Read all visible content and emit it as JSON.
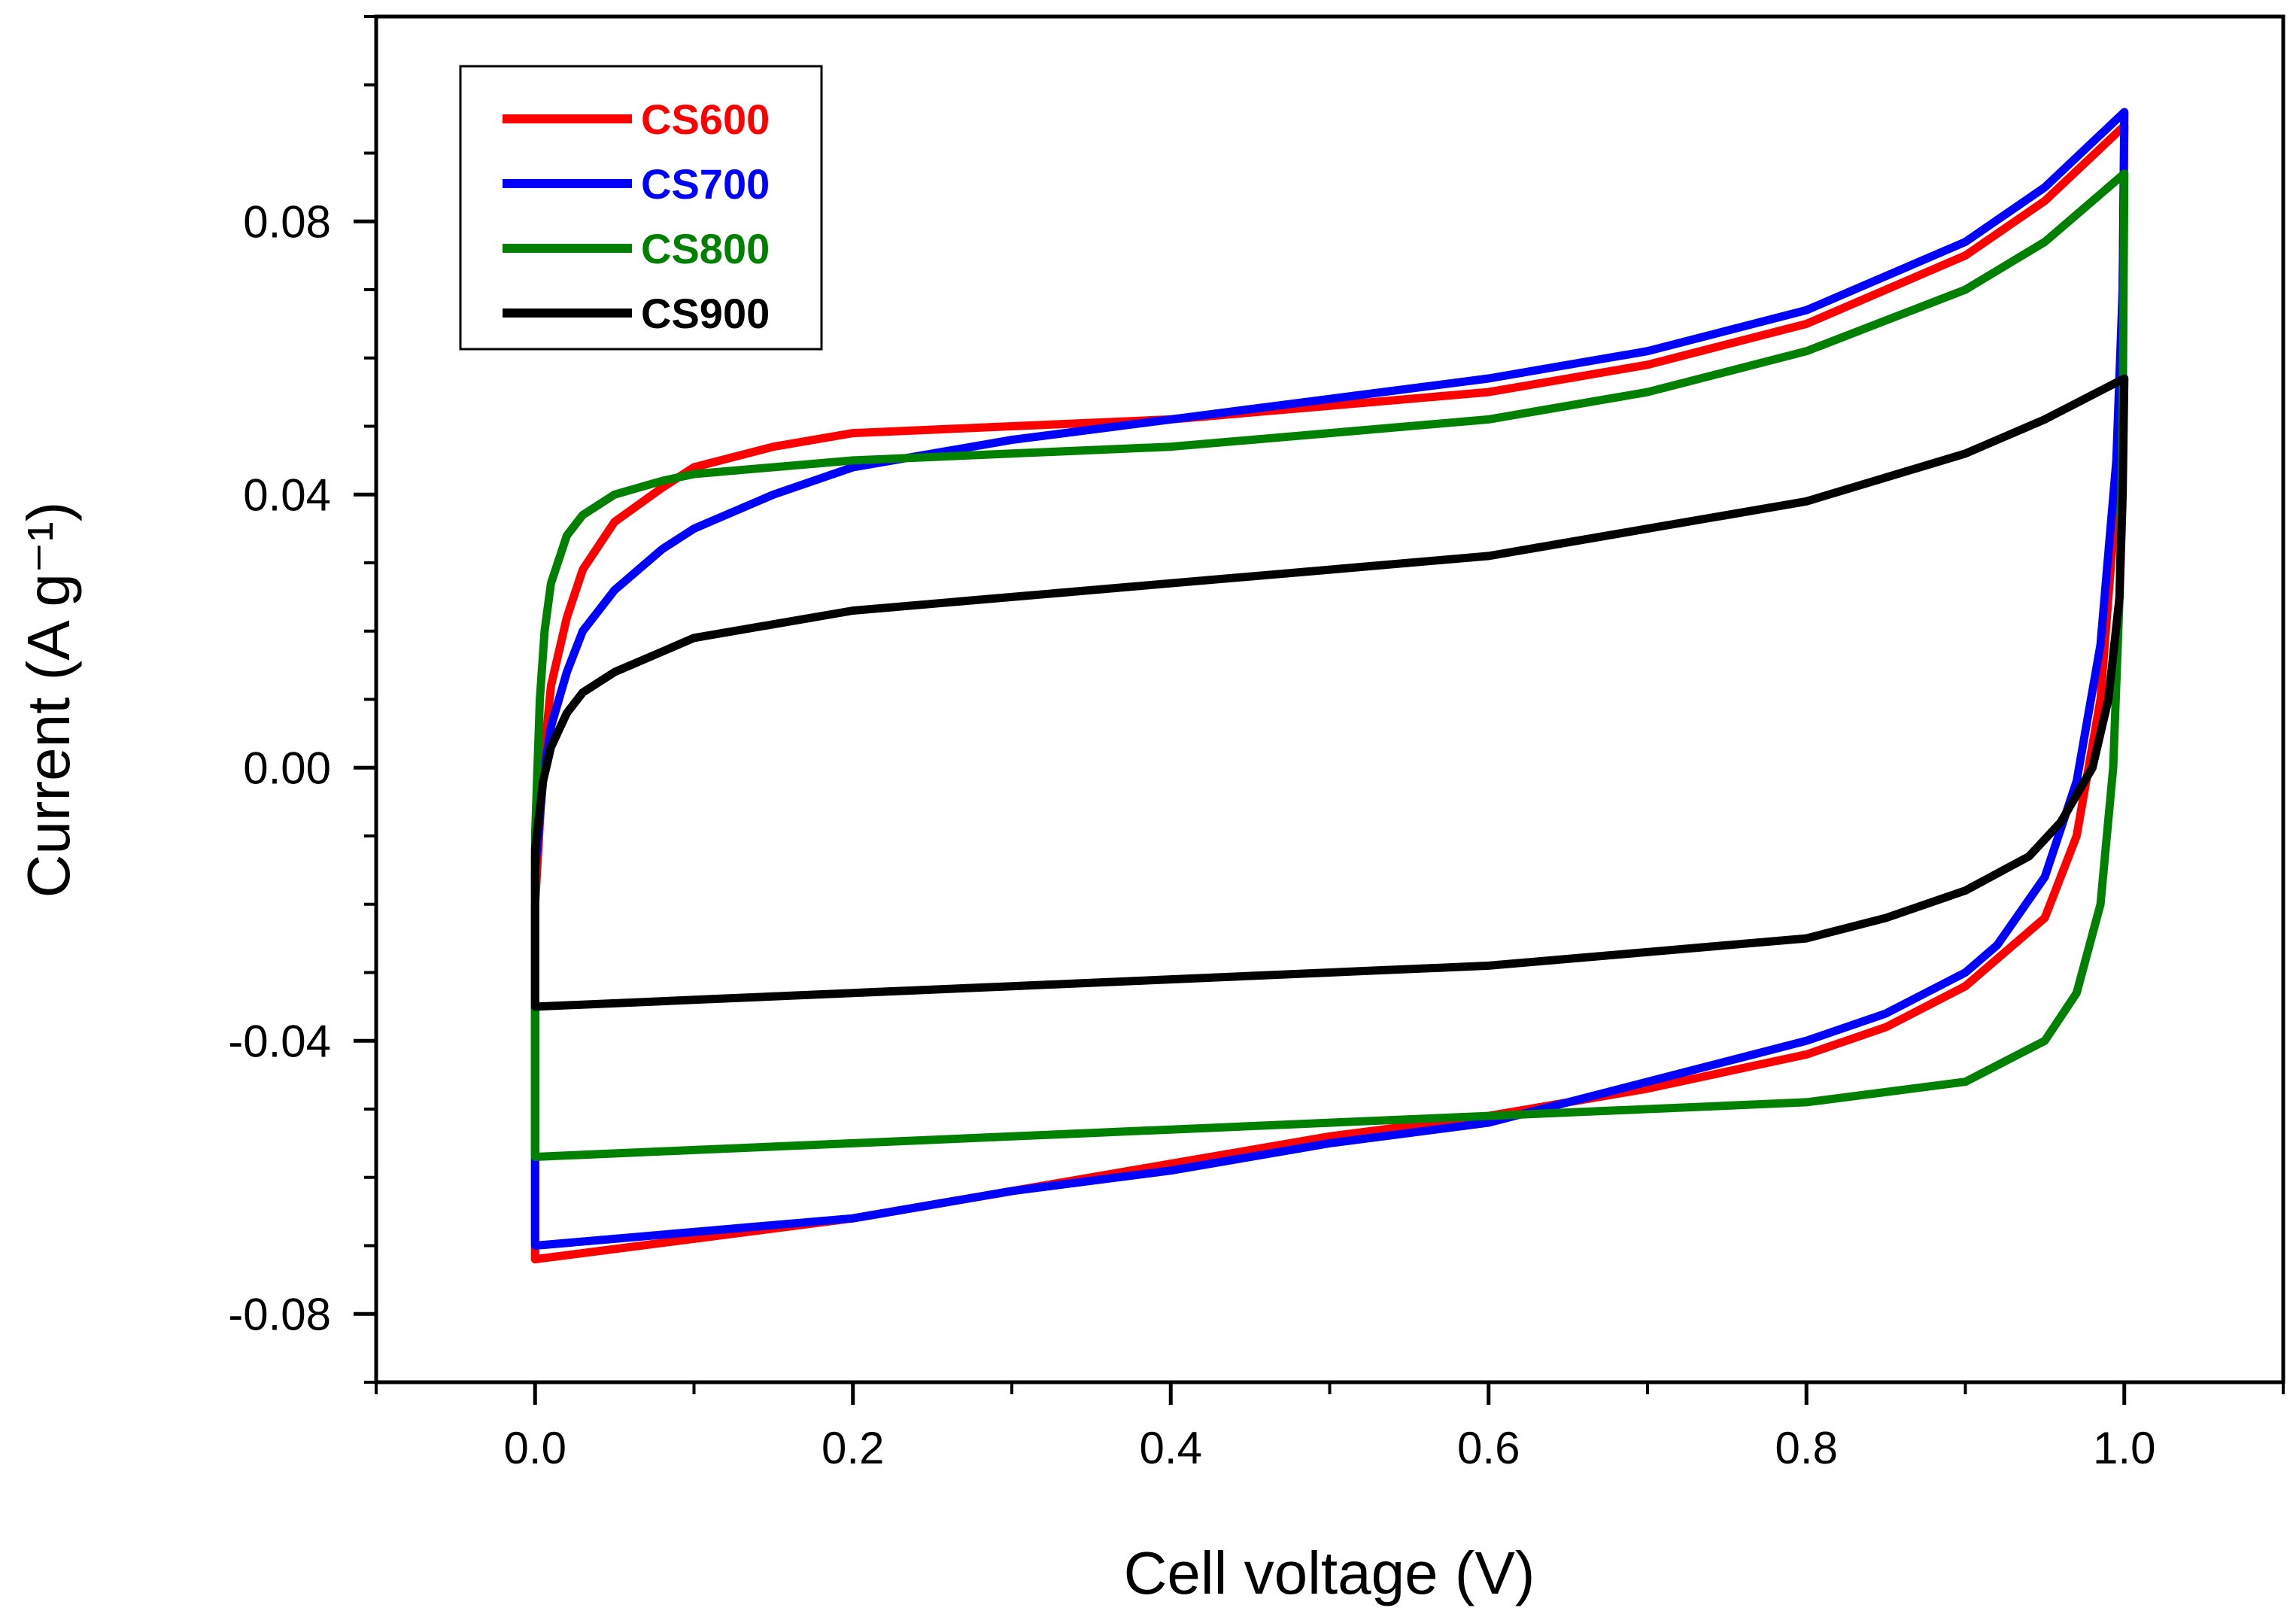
{
  "chart_data": {
    "type": "line",
    "title": "",
    "xlabel": "Cell voltage (V)",
    "ylabel": "Current (A g⁻¹)",
    "xlim": [
      -0.1,
      1.1
    ],
    "ylim": [
      -0.09,
      0.11
    ],
    "xticks": [
      0.0,
      0.2,
      0.4,
      0.6,
      0.8,
      1.0
    ],
    "xtick_labels": [
      "0.0",
      "0.2",
      "0.4",
      "0.6",
      "0.8",
      "1.0"
    ],
    "yticks": [
      -0.08,
      -0.04,
      0.0,
      0.04,
      0.08
    ],
    "ytick_labels": [
      "-0.08",
      "-0.04",
      "0.00",
      "0.04",
      "0.08"
    ],
    "grid": false,
    "legend_position": "top-left",
    "series": [
      {
        "name": "CS600",
        "color": "#ff0000",
        "forward": [
          [
            0.0,
            -0.02
          ],
          [
            0.005,
            0.0
          ],
          [
            0.01,
            0.012
          ],
          [
            0.02,
            0.022
          ],
          [
            0.03,
            0.029
          ],
          [
            0.05,
            0.036
          ],
          [
            0.08,
            0.041
          ],
          [
            0.1,
            0.044
          ],
          [
            0.15,
            0.047
          ],
          [
            0.2,
            0.049
          ],
          [
            0.3,
            0.05
          ],
          [
            0.4,
            0.051
          ],
          [
            0.5,
            0.053
          ],
          [
            0.6,
            0.055
          ],
          [
            0.7,
            0.059
          ],
          [
            0.8,
            0.065
          ],
          [
            0.9,
            0.075
          ],
          [
            0.95,
            0.083
          ],
          [
            1.0,
            0.094
          ]
        ],
        "reverse": [
          [
            1.0,
            0.094
          ],
          [
            0.999,
            0.07
          ],
          [
            0.995,
            0.04
          ],
          [
            0.985,
            0.01
          ],
          [
            0.97,
            -0.01
          ],
          [
            0.95,
            -0.022
          ],
          [
            0.9,
            -0.032
          ],
          [
            0.85,
            -0.038
          ],
          [
            0.8,
            -0.042
          ],
          [
            0.7,
            -0.047
          ],
          [
            0.6,
            -0.051
          ],
          [
            0.5,
            -0.054
          ],
          [
            0.4,
            -0.058
          ],
          [
            0.3,
            -0.062
          ],
          [
            0.2,
            -0.066
          ],
          [
            0.1,
            -0.069
          ],
          [
            0.0,
            -0.072
          ],
          [
            0.0,
            -0.04
          ],
          [
            0.0,
            -0.02
          ]
        ]
      },
      {
        "name": "CS700",
        "color": "#0000ff",
        "forward": [
          [
            0.0,
            -0.015
          ],
          [
            0.005,
            -0.002
          ],
          [
            0.01,
            0.006
          ],
          [
            0.02,
            0.014
          ],
          [
            0.03,
            0.02
          ],
          [
            0.05,
            0.026
          ],
          [
            0.08,
            0.032
          ],
          [
            0.1,
            0.035
          ],
          [
            0.15,
            0.04
          ],
          [
            0.2,
            0.044
          ],
          [
            0.3,
            0.048
          ],
          [
            0.4,
            0.051
          ],
          [
            0.5,
            0.054
          ],
          [
            0.6,
            0.057
          ],
          [
            0.7,
            0.061
          ],
          [
            0.8,
            0.067
          ],
          [
            0.9,
            0.077
          ],
          [
            0.95,
            0.085
          ],
          [
            1.0,
            0.096
          ]
        ],
        "reverse": [
          [
            1.0,
            0.096
          ],
          [
            0.999,
            0.07
          ],
          [
            0.995,
            0.045
          ],
          [
            0.985,
            0.018
          ],
          [
            0.97,
            -0.002
          ],
          [
            0.95,
            -0.016
          ],
          [
            0.92,
            -0.026
          ],
          [
            0.9,
            -0.03
          ],
          [
            0.85,
            -0.036
          ],
          [
            0.8,
            -0.04
          ],
          [
            0.7,
            -0.046
          ],
          [
            0.6,
            -0.052
          ],
          [
            0.5,
            -0.055
          ],
          [
            0.4,
            -0.059
          ],
          [
            0.3,
            -0.062
          ],
          [
            0.2,
            -0.066
          ],
          [
            0.1,
            -0.068
          ],
          [
            0.0,
            -0.07
          ],
          [
            0.0,
            -0.04
          ],
          [
            0.0,
            -0.015
          ]
        ]
      },
      {
        "name": "CS800",
        "color": "#008000",
        "forward": [
          [
            0.0,
            -0.01
          ],
          [
            0.003,
            0.01
          ],
          [
            0.006,
            0.02
          ],
          [
            0.01,
            0.027
          ],
          [
            0.02,
            0.034
          ],
          [
            0.03,
            0.037
          ],
          [
            0.05,
            0.04
          ],
          [
            0.08,
            0.042
          ],
          [
            0.1,
            0.043
          ],
          [
            0.2,
            0.045
          ],
          [
            0.3,
            0.046
          ],
          [
            0.4,
            0.047
          ],
          [
            0.5,
            0.049
          ],
          [
            0.6,
            0.051
          ],
          [
            0.7,
            0.055
          ],
          [
            0.8,
            0.061
          ],
          [
            0.9,
            0.07
          ],
          [
            0.95,
            0.077
          ],
          [
            1.0,
            0.087
          ]
        ],
        "reverse": [
          [
            1.0,
            0.087
          ],
          [
            0.999,
            0.05
          ],
          [
            0.997,
            0.025
          ],
          [
            0.993,
            0.0
          ],
          [
            0.985,
            -0.02
          ],
          [
            0.97,
            -0.033
          ],
          [
            0.95,
            -0.04
          ],
          [
            0.9,
            -0.046
          ],
          [
            0.8,
            -0.049
          ],
          [
            0.7,
            -0.05
          ],
          [
            0.6,
            -0.051
          ],
          [
            0.5,
            -0.052
          ],
          [
            0.4,
            -0.053
          ],
          [
            0.3,
            -0.054
          ],
          [
            0.2,
            -0.055
          ],
          [
            0.1,
            -0.056
          ],
          [
            0.0,
            -0.057
          ],
          [
            0.0,
            -0.03
          ],
          [
            0.0,
            -0.01
          ]
        ]
      },
      {
        "name": "CS900",
        "color": "#000000",
        "forward": [
          [
            0.0,
            -0.012
          ],
          [
            0.005,
            -0.002
          ],
          [
            0.01,
            0.003
          ],
          [
            0.02,
            0.008
          ],
          [
            0.03,
            0.011
          ],
          [
            0.05,
            0.014
          ],
          [
            0.08,
            0.017
          ],
          [
            0.1,
            0.019
          ],
          [
            0.15,
            0.021
          ],
          [
            0.2,
            0.023
          ],
          [
            0.3,
            0.025
          ],
          [
            0.4,
            0.027
          ],
          [
            0.5,
            0.029
          ],
          [
            0.6,
            0.031
          ],
          [
            0.7,
            0.035
          ],
          [
            0.8,
            0.039
          ],
          [
            0.9,
            0.046
          ],
          [
            0.95,
            0.051
          ],
          [
            1.0,
            0.057
          ]
        ],
        "reverse": [
          [
            1.0,
            0.057
          ],
          [
            0.999,
            0.04
          ],
          [
            0.997,
            0.025
          ],
          [
            0.99,
            0.01
          ],
          [
            0.98,
            0.0
          ],
          [
            0.96,
            -0.008
          ],
          [
            0.94,
            -0.013
          ],
          [
            0.9,
            -0.018
          ],
          [
            0.85,
            -0.022
          ],
          [
            0.8,
            -0.025
          ],
          [
            0.7,
            -0.027
          ],
          [
            0.6,
            -0.029
          ],
          [
            0.5,
            -0.03
          ],
          [
            0.4,
            -0.031
          ],
          [
            0.3,
            -0.032
          ],
          [
            0.2,
            -0.033
          ],
          [
            0.1,
            -0.034
          ],
          [
            0.0,
            -0.035
          ],
          [
            0.0,
            -0.025
          ],
          [
            0.0,
            -0.012
          ]
        ]
      }
    ]
  }
}
